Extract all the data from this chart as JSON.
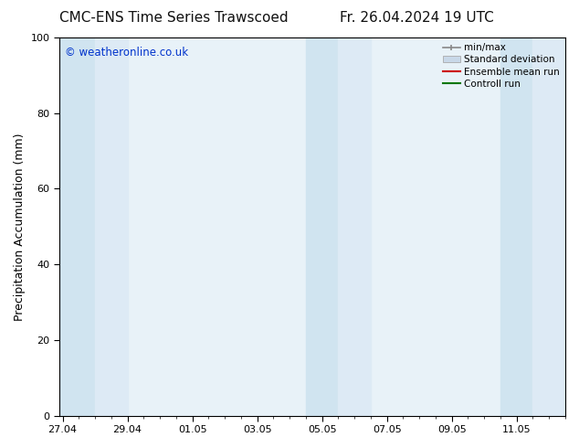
{
  "title_left": "CMC-ENS Time Series Trawscoed",
  "title_right": "Fr. 26.04.2024 19 UTC",
  "ylabel": "Precipitation Accumulation (mm)",
  "watermark": "© weatheronline.co.uk",
  "watermark_color": "#0033cc",
  "ylim": [
    0,
    100
  ],
  "yticks": [
    0,
    20,
    40,
    60,
    80,
    100
  ],
  "x_tick_labels": [
    "27.04",
    "29.04",
    "01.05",
    "03.05",
    "05.05",
    "07.05",
    "09.05",
    "11.05"
  ],
  "x_tick_positions": [
    0,
    2,
    4,
    6,
    8,
    10,
    12,
    14
  ],
  "x_range": [
    -0.1,
    15.5
  ],
  "shaded_bands": [
    {
      "x_start": -0.1,
      "x_end": 1.0,
      "color": "#d0e4f0"
    },
    {
      "x_start": 1.0,
      "x_end": 2.0,
      "color": "#ddeaf5"
    },
    {
      "x_start": 7.5,
      "x_end": 8.5,
      "color": "#d0e4f0"
    },
    {
      "x_start": 8.5,
      "x_end": 9.5,
      "color": "#ddeaf5"
    },
    {
      "x_start": 13.5,
      "x_end": 14.5,
      "color": "#d0e4f0"
    },
    {
      "x_start": 14.5,
      "x_end": 15.5,
      "color": "#ddeaf5"
    }
  ],
  "plot_bg_color": "#e8f2f8",
  "bg_color": "#ffffff",
  "spine_color": "#000000",
  "tick_color": "#000000",
  "title_fontsize": 11,
  "label_fontsize": 9,
  "tick_fontsize": 8,
  "legend_labels": [
    "min/max",
    "Standard deviation",
    "Ensemble mean run",
    "Controll run"
  ],
  "legend_line_colors": [
    "#888888",
    "#aabbcc",
    "#cc0000",
    "#007700"
  ]
}
